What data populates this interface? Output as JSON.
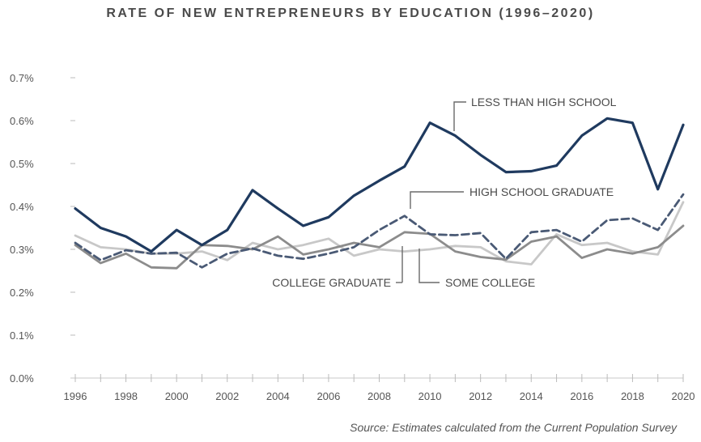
{
  "chart_data": {
    "type": "line",
    "title": "RATE OF NEW ENTREPRENEURS BY EDUCATION (1996–2020)",
    "source": "Source: Estimates calculated from the Current Population Survey",
    "xlabel": "",
    "ylabel": "",
    "xlim": [
      1996,
      2020
    ],
    "ylim": [
      0.0,
      0.7
    ],
    "x_ticks": [
      "1996",
      "1998",
      "2000",
      "2002",
      "2004",
      "2006",
      "2008",
      "2010",
      "2012",
      "2014",
      "2016",
      "2018",
      "2020"
    ],
    "y_ticks": [
      "0.0%",
      "0.1%",
      "0.2%",
      "0.3%",
      "0.4%",
      "0.5%",
      "0.6%",
      "0.7%"
    ],
    "grid": false,
    "legend": "inline annotations",
    "x": [
      1996,
      1997,
      1998,
      1999,
      2000,
      2001,
      2002,
      2003,
      2004,
      2005,
      2006,
      2007,
      2008,
      2009,
      2010,
      2011,
      2012,
      2013,
      2014,
      2015,
      2016,
      2017,
      2018,
      2019,
      2020
    ],
    "series": [
      {
        "name": "LESS THAN HIGH SCHOOL",
        "color": "#1f3a5f",
        "style": "solid",
        "values": [
          0.395,
          0.35,
          0.33,
          0.295,
          0.345,
          0.31,
          0.345,
          0.438,
          0.395,
          0.355,
          0.375,
          0.425,
          0.46,
          0.493,
          0.595,
          0.565,
          0.52,
          0.48,
          0.482,
          0.495,
          0.565,
          0.605,
          0.595,
          0.44,
          0.59
        ]
      },
      {
        "name": "HIGH SCHOOL GRADUATE",
        "color": "#4a5a75",
        "style": "dashed",
        "values": [
          0.315,
          0.275,
          0.298,
          0.29,
          0.292,
          0.258,
          0.29,
          0.302,
          0.285,
          0.278,
          0.29,
          0.305,
          0.345,
          0.378,
          0.335,
          0.333,
          0.338,
          0.278,
          0.34,
          0.345,
          0.318,
          0.368,
          0.372,
          0.345,
          0.428
        ]
      },
      {
        "name": "COLLEGE GRADUATE",
        "color": "#8c8c8c",
        "style": "solid",
        "values": [
          0.31,
          0.268,
          0.29,
          0.258,
          0.256,
          0.31,
          0.308,
          0.3,
          0.33,
          0.288,
          0.3,
          0.315,
          0.305,
          0.34,
          0.336,
          0.295,
          0.282,
          0.276,
          0.318,
          0.33,
          0.28,
          0.3,
          0.29,
          0.305,
          0.355
        ]
      },
      {
        "name": "SOME COLLEGE",
        "color": "#c8c8c8",
        "style": "solid",
        "values": [
          0.332,
          0.305,
          0.3,
          0.29,
          0.29,
          0.295,
          0.275,
          0.315,
          0.3,
          0.31,
          0.325,
          0.285,
          0.3,
          0.295,
          0.3,
          0.308,
          0.305,
          0.272,
          0.265,
          0.335,
          0.31,
          0.315,
          0.295,
          0.288,
          0.41
        ]
      }
    ],
    "annotations": [
      {
        "text": "LESS THAN HIGH SCHOOL",
        "series": "LESS THAN HIGH SCHOOL"
      },
      {
        "text": "HIGH SCHOOL GRADUATE",
        "series": "HIGH SCHOOL GRADUATE"
      },
      {
        "text": "COLLEGE GRADUATE",
        "series": "COLLEGE GRADUATE"
      },
      {
        "text": "SOME COLLEGE",
        "series": "SOME COLLEGE"
      }
    ]
  }
}
